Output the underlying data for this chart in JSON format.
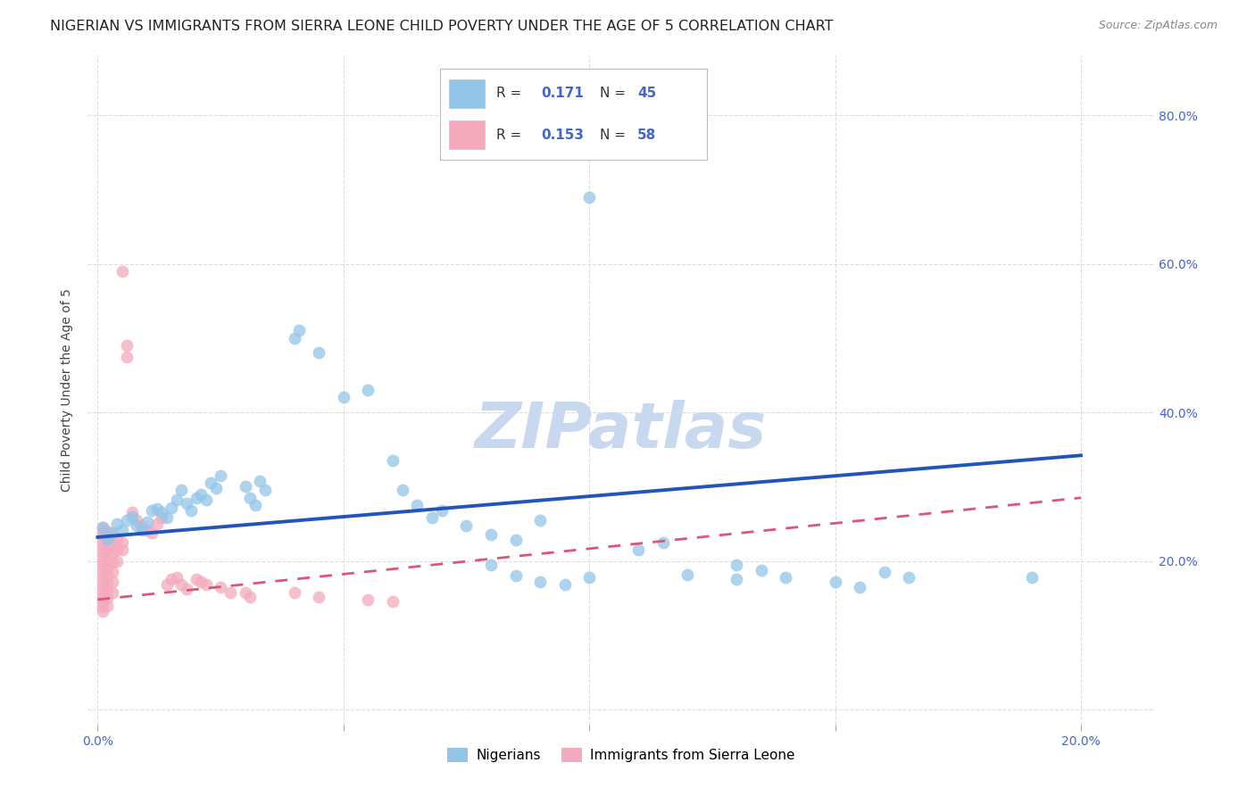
{
  "title": "NIGERIAN VS IMMIGRANTS FROM SIERRA LEONE CHILD POVERTY UNDER THE AGE OF 5 CORRELATION CHART",
  "source": "Source: ZipAtlas.com",
  "ylabel": "Child Poverty Under the Age of 5",
  "y_ticks": [
    0.0,
    0.2,
    0.4,
    0.6,
    0.8
  ],
  "y_tick_labels": [
    "",
    "20.0%",
    "40.0%",
    "60.0%",
    "80.0%"
  ],
  "blue_scatter": [
    [
      0.001,
      0.245
    ],
    [
      0.002,
      0.23
    ],
    [
      0.003,
      0.238
    ],
    [
      0.004,
      0.25
    ],
    [
      0.005,
      0.242
    ],
    [
      0.006,
      0.255
    ],
    [
      0.007,
      0.26
    ],
    [
      0.008,
      0.248
    ],
    [
      0.009,
      0.242
    ],
    [
      0.01,
      0.252
    ],
    [
      0.011,
      0.268
    ],
    [
      0.012,
      0.27
    ],
    [
      0.013,
      0.265
    ],
    [
      0.014,
      0.258
    ],
    [
      0.015,
      0.272
    ],
    [
      0.016,
      0.282
    ],
    [
      0.017,
      0.295
    ],
    [
      0.018,
      0.278
    ],
    [
      0.019,
      0.268
    ],
    [
      0.02,
      0.285
    ],
    [
      0.021,
      0.29
    ],
    [
      0.022,
      0.282
    ],
    [
      0.023,
      0.305
    ],
    [
      0.024,
      0.298
    ],
    [
      0.025,
      0.315
    ],
    [
      0.03,
      0.3
    ],
    [
      0.031,
      0.285
    ],
    [
      0.032,
      0.275
    ],
    [
      0.033,
      0.308
    ],
    [
      0.034,
      0.295
    ],
    [
      0.04,
      0.5
    ],
    [
      0.041,
      0.51
    ],
    [
      0.045,
      0.48
    ],
    [
      0.05,
      0.42
    ],
    [
      0.055,
      0.43
    ],
    [
      0.06,
      0.335
    ],
    [
      0.062,
      0.295
    ],
    [
      0.065,
      0.275
    ],
    [
      0.068,
      0.258
    ],
    [
      0.07,
      0.268
    ],
    [
      0.075,
      0.248
    ],
    [
      0.08,
      0.235
    ],
    [
      0.085,
      0.228
    ],
    [
      0.09,
      0.255
    ],
    [
      0.1,
      0.69
    ],
    [
      0.11,
      0.215
    ],
    [
      0.115,
      0.225
    ],
    [
      0.13,
      0.195
    ],
    [
      0.135,
      0.188
    ],
    [
      0.16,
      0.185
    ],
    [
      0.165,
      0.178
    ],
    [
      0.19,
      0.178
    ],
    [
      0.08,
      0.195
    ],
    [
      0.085,
      0.18
    ],
    [
      0.09,
      0.172
    ],
    [
      0.095,
      0.168
    ],
    [
      0.1,
      0.178
    ],
    [
      0.12,
      0.182
    ],
    [
      0.13,
      0.175
    ],
    [
      0.14,
      0.178
    ],
    [
      0.15,
      0.172
    ],
    [
      0.155,
      0.165
    ]
  ],
  "pink_scatter": [
    [
      0.001,
      0.245
    ],
    [
      0.001,
      0.238
    ],
    [
      0.001,
      0.232
    ],
    [
      0.001,
      0.225
    ],
    [
      0.001,
      0.218
    ],
    [
      0.001,
      0.212
    ],
    [
      0.001,
      0.205
    ],
    [
      0.001,
      0.198
    ],
    [
      0.001,
      0.192
    ],
    [
      0.001,
      0.185
    ],
    [
      0.001,
      0.178
    ],
    [
      0.001,
      0.172
    ],
    [
      0.001,
      0.165
    ],
    [
      0.001,
      0.158
    ],
    [
      0.001,
      0.152
    ],
    [
      0.001,
      0.145
    ],
    [
      0.001,
      0.138
    ],
    [
      0.001,
      0.132
    ],
    [
      0.002,
      0.24
    ],
    [
      0.002,
      0.23
    ],
    [
      0.002,
      0.22
    ],
    [
      0.002,
      0.21
    ],
    [
      0.002,
      0.2
    ],
    [
      0.002,
      0.19
    ],
    [
      0.002,
      0.18
    ],
    [
      0.002,
      0.17
    ],
    [
      0.002,
      0.16
    ],
    [
      0.002,
      0.15
    ],
    [
      0.002,
      0.14
    ],
    [
      0.003,
      0.235
    ],
    [
      0.003,
      0.222
    ],
    [
      0.003,
      0.21
    ],
    [
      0.003,
      0.198
    ],
    [
      0.003,
      0.185
    ],
    [
      0.003,
      0.172
    ],
    [
      0.003,
      0.158
    ],
    [
      0.004,
      0.228
    ],
    [
      0.004,
      0.215
    ],
    [
      0.004,
      0.2
    ],
    [
      0.005,
      0.59
    ],
    [
      0.005,
      0.225
    ],
    [
      0.005,
      0.215
    ],
    [
      0.006,
      0.49
    ],
    [
      0.006,
      0.475
    ],
    [
      0.007,
      0.265
    ],
    [
      0.008,
      0.255
    ],
    [
      0.009,
      0.248
    ],
    [
      0.01,
      0.242
    ],
    [
      0.011,
      0.238
    ],
    [
      0.012,
      0.25
    ],
    [
      0.013,
      0.258
    ],
    [
      0.014,
      0.168
    ],
    [
      0.015,
      0.175
    ],
    [
      0.016,
      0.178
    ],
    [
      0.017,
      0.168
    ],
    [
      0.018,
      0.162
    ],
    [
      0.02,
      0.175
    ],
    [
      0.021,
      0.172
    ],
    [
      0.022,
      0.168
    ],
    [
      0.025,
      0.165
    ],
    [
      0.027,
      0.158
    ],
    [
      0.03,
      0.158
    ],
    [
      0.031,
      0.152
    ],
    [
      0.04,
      0.158
    ],
    [
      0.045,
      0.152
    ],
    [
      0.055,
      0.148
    ],
    [
      0.06,
      0.145
    ]
  ],
  "blue_line": {
    "x0": 0.0,
    "y0": 0.232,
    "x1": 0.2,
    "y1": 0.342
  },
  "pink_line": {
    "x0": 0.0,
    "y0": 0.148,
    "x1": 0.2,
    "y1": 0.285
  },
  "xlim": [
    -0.002,
    0.215
  ],
  "ylim": [
    -0.02,
    0.88
  ],
  "scatter_size": 100,
  "blue_color": "#92C5E8",
  "pink_color": "#F4AABC",
  "blue_line_color": "#2255BB",
  "pink_line_color": "#DD5577",
  "grid_color": "#DDDDDD",
  "title_fontsize": 11.5,
  "axis_label_fontsize": 10,
  "tick_fontsize": 10,
  "legend_fontsize": 11,
  "watermark_text": "ZIPatlas",
  "watermark_color": "#C8D8EE",
  "watermark_fontsize": 52,
  "right_ytick_color": "#4466CC"
}
